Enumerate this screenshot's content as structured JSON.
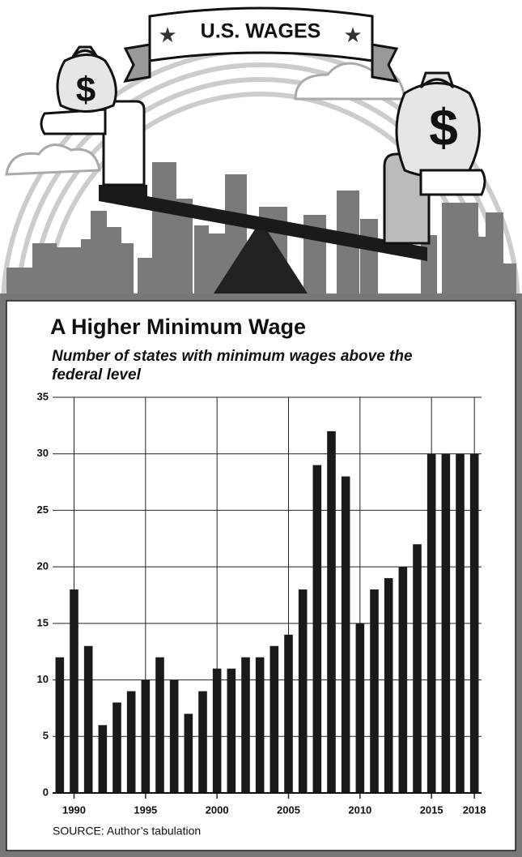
{
  "illustration": {
    "banner": "U.S. WAGES",
    "money_symbol": "$"
  },
  "chart_data": {
    "type": "bar",
    "title": "A Higher Minimum Wage",
    "subtitle": "Number of states with minimum wages above the federal level",
    "source": "SOURCE: Author’s tabulation",
    "x": [
      1989,
      1990,
      1991,
      1992,
      1993,
      1994,
      1995,
      1996,
      1997,
      1998,
      1999,
      2000,
      2001,
      2002,
      2003,
      2004,
      2005,
      2006,
      2007,
      2008,
      2009,
      2010,
      2011,
      2012,
      2013,
      2014,
      2015,
      2016,
      2017,
      2018
    ],
    "values": [
      12,
      18,
      13,
      6,
      8,
      9,
      10,
      12,
      10,
      7,
      9,
      11,
      11,
      12,
      12,
      13,
      14,
      18,
      29,
      32,
      28,
      15,
      18,
      19,
      20,
      22,
      30,
      30,
      30,
      30
    ],
    "color": "#1a1a1a",
    "xlim": [
      1988.5,
      2018.5
    ],
    "xticks": [
      1990,
      1995,
      2000,
      2005,
      2010,
      2015,
      2018
    ],
    "ylim": [
      0,
      35
    ],
    "yticks": [
      0,
      5,
      10,
      15,
      20,
      25,
      30,
      35
    ],
    "grid": true
  }
}
